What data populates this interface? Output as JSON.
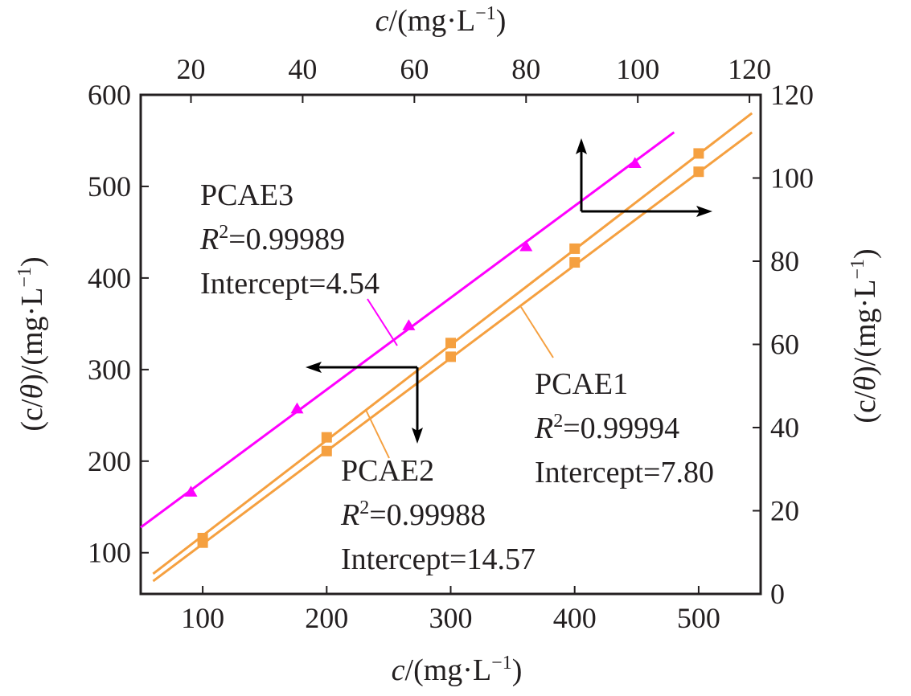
{
  "chart_data": {
    "type": "scatter",
    "bottom_axis": {
      "label_pre": "c",
      "label_post": "/(mg·L",
      "label_sup": "−1",
      "label_close": ")",
      "range": [
        50,
        550
      ],
      "ticks": [
        100,
        200,
        300,
        400,
        500
      ],
      "tick_labels": [
        "100",
        "200",
        "300",
        "400",
        "500"
      ]
    },
    "top_axis": {
      "label_pre": "c",
      "label_post": "/(mg·L",
      "label_sup": "−1",
      "label_close": ")",
      "range": [
        11,
        122
      ],
      "ticks": [
        20,
        40,
        60,
        80,
        100,
        120
      ],
      "tick_labels": [
        "20",
        "40",
        "60",
        "80",
        "100",
        "120"
      ]
    },
    "left_axis": {
      "label_pre": "(c/",
      "label_theta": "θ",
      "label_post": ")/(mg·L",
      "label_sup": "−1",
      "label_close": ")",
      "range": [
        55,
        600
      ],
      "ticks": [
        100,
        200,
        300,
        400,
        500,
        600
      ],
      "tick_labels": [
        "100",
        "200",
        "300",
        "400",
        "500",
        "600"
      ]
    },
    "right_axis": {
      "label_pre": "(c/",
      "label_theta": "θ",
      "label_post": ")/(mg·L",
      "label_sup": "−1",
      "label_close": ")",
      "range": [
        0,
        120
      ],
      "ticks": [
        0,
        20,
        40,
        60,
        80,
        100,
        120
      ],
      "tick_labels": [
        "0",
        "20",
        "40",
        "60",
        "80",
        "100",
        "120"
      ]
    },
    "series": [
      {
        "name": "PCAE3",
        "axes": "top-right",
        "color": "#ff00ff",
        "marker": "triangle",
        "x": [
          20,
          39,
          59,
          80,
          99.5
        ],
        "y": [
          24.5,
          44.5,
          64.5,
          83.5,
          103.5
        ],
        "fit_x": [
          11,
          106.5
        ],
        "fit_y": [
          16,
          111
        ]
      },
      {
        "name": "PCAE2",
        "axes": "bottom-left",
        "color": "#f5a040",
        "marker": "square",
        "x": [
          100,
          200,
          300,
          400,
          500
        ],
        "y": [
          116,
          226,
          329,
          432,
          536
        ],
        "fit_x": [
          60,
          543
        ],
        "fit_y": [
          77,
          580
        ]
      },
      {
        "name": "PCAE1",
        "axes": "bottom-left",
        "color": "#f5a040",
        "marker": "square",
        "x": [
          100,
          200,
          300,
          400,
          500
        ],
        "y": [
          111,
          211,
          314,
          417,
          516
        ],
        "fit_x": [
          60,
          543
        ],
        "fit_y": [
          69,
          559
        ]
      }
    ],
    "annotations": [
      {
        "series": "PCAE3",
        "name": "PCAE3",
        "r2_label": "R",
        "r2_value": "=0.99989",
        "intercept": "Intercept=4.54"
      },
      {
        "series": "PCAE2",
        "name": "PCAE2",
        "r2_label": "R",
        "r2_value": "=0.99988",
        "intercept": "Intercept=14.57"
      },
      {
        "series": "PCAE1",
        "name": "PCAE1",
        "r2_label": "R",
        "r2_value": "=0.99994",
        "intercept": "Intercept=7.80"
      }
    ],
    "r2_sup": "2"
  },
  "colors": {
    "axis": "#231f20",
    "pcae3": "#ff00ff",
    "pcae12": "#f5a040",
    "arrow": "#000000"
  }
}
